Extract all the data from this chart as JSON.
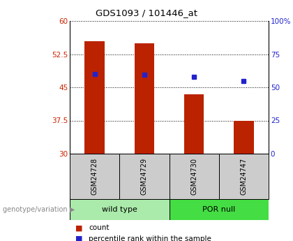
{
  "title": "GDS1093 / 101446_at",
  "samples": [
    "GSM24728",
    "GSM24729",
    "GSM24730",
    "GSM24747"
  ],
  "bar_values": [
    55.5,
    55.0,
    43.5,
    37.5
  ],
  "percentile_values": [
    48.0,
    47.8,
    47.3,
    46.5
  ],
  "groups": [
    {
      "label": "wild type",
      "indices": [
        0,
        1
      ],
      "color": "#b8f0b8"
    },
    {
      "label": "POR null",
      "indices": [
        2,
        3
      ],
      "color": "#44ee44"
    }
  ],
  "ylim_left": [
    30,
    60
  ],
  "ylim_right": [
    0,
    100
  ],
  "yticks_left": [
    30,
    37.5,
    45,
    52.5,
    60
  ],
  "ytick_labels_left": [
    "30",
    "37.5",
    "45",
    "52.5",
    "60"
  ],
  "yticks_right": [
    0,
    25,
    50,
    75,
    100
  ],
  "ytick_labels_right": [
    "0",
    "25",
    "50",
    "75",
    "100%"
  ],
  "bar_color": "#bb2200",
  "dot_color": "#2222cc",
  "bar_width": 0.4,
  "legend_count": "count",
  "legend_pct": "percentile rank within the sample",
  "left_tick_color": "#cc2200",
  "right_tick_color": "#2222cc",
  "sample_box_color": "#cccccc",
  "group_color_wt": "#aaeaaa",
  "group_color_por": "#44dd44"
}
